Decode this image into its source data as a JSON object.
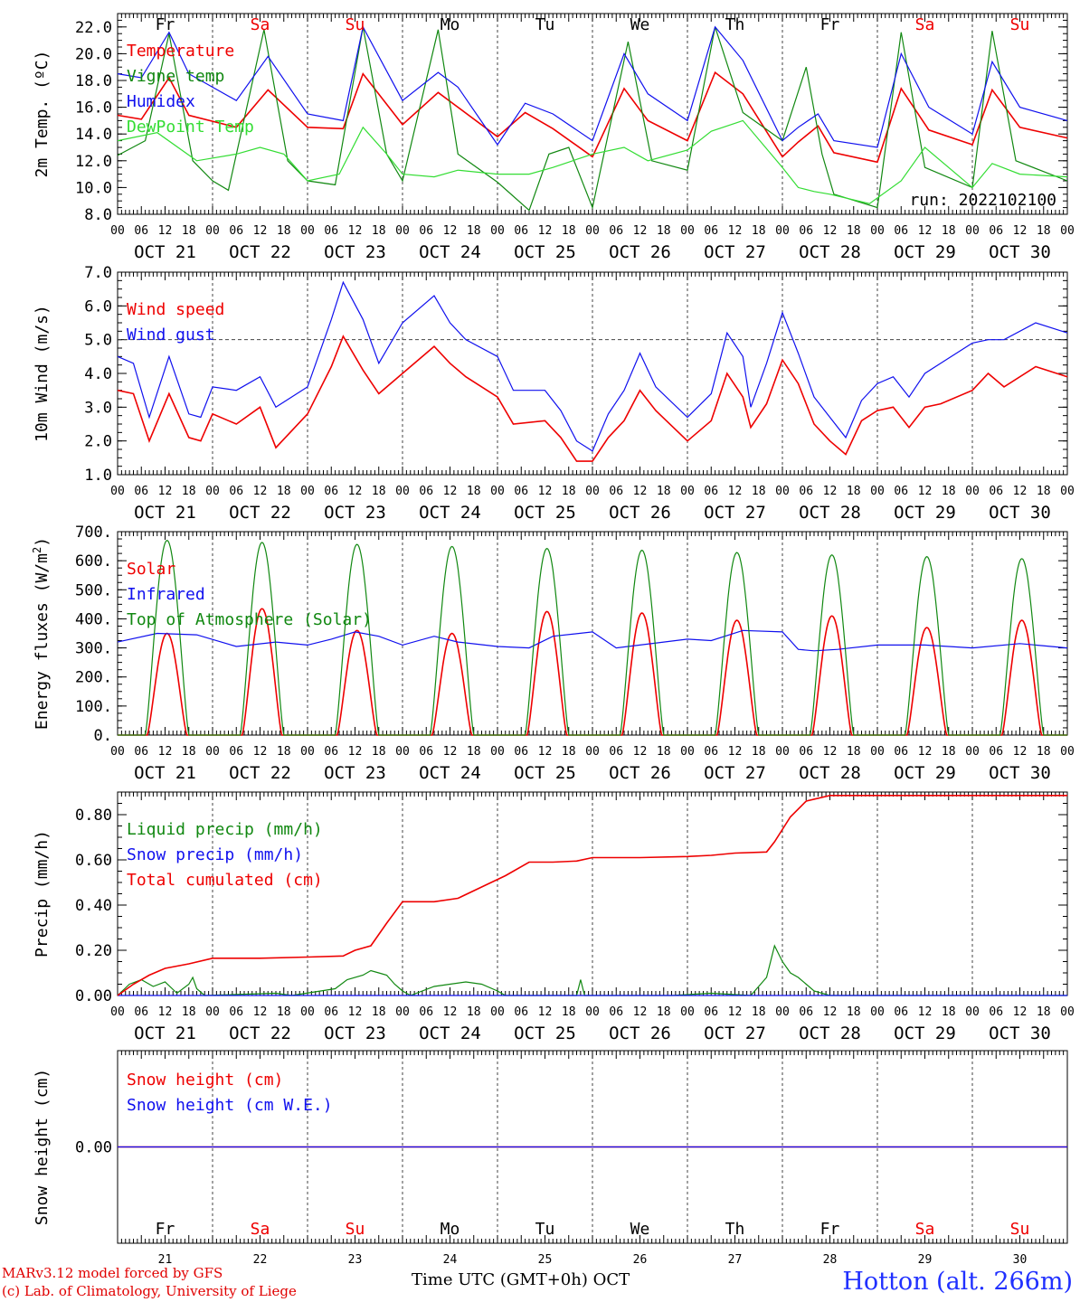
{
  "run_label": "run: 2022102100",
  "footer": {
    "model": "MARv3.12 model forced by GFS",
    "credit": "(c) Lab. of Climatology, University of Liege",
    "xlabel": "Time UTC (GMT+0h) OCT",
    "station": "Hotton (alt. 266m)"
  },
  "days": [
    {
      "abbr": "Fr",
      "weekend": false,
      "date": "OCT 21",
      "num": "21"
    },
    {
      "abbr": "Sa",
      "weekend": true,
      "date": "OCT 22",
      "num": "22"
    },
    {
      "abbr": "Su",
      "weekend": true,
      "date": "OCT 23",
      "num": "23"
    },
    {
      "abbr": "Mo",
      "weekend": false,
      "date": "OCT 24",
      "num": "24"
    },
    {
      "abbr": "Tu",
      "weekend": false,
      "date": "OCT 25",
      "num": "25"
    },
    {
      "abbr": "We",
      "weekend": false,
      "date": "OCT 26",
      "num": "26"
    },
    {
      "abbr": "Th",
      "weekend": false,
      "date": "OCT 27",
      "num": "27"
    },
    {
      "abbr": "Fr",
      "weekend": false,
      "date": "OCT 28",
      "num": "28"
    },
    {
      "abbr": "Sa",
      "weekend": true,
      "date": "OCT 29",
      "num": "29"
    },
    {
      "abbr": "Su",
      "weekend": true,
      "date": "OCT 30",
      "num": "30"
    }
  ],
  "hour_ticks": [
    "00",
    "06",
    "12",
    "18"
  ],
  "final_hour_tick": "00",
  "colors": {
    "red": "#ee0000",
    "green": "#118811",
    "blue": "#1010ee",
    "lightgreen": "#33dd33",
    "purple": "#9922aa",
    "weekend": "#ee0000"
  },
  "chart_data": [
    {
      "type": "line",
      "ylabel": "2m Temp. (ºC)",
      "ylim": [
        8.0,
        23.0
      ],
      "yticks": [
        "8.0",
        "10.0",
        "12.0",
        "14.0",
        "16.0",
        "18.0",
        "20.0",
        "22.0"
      ],
      "legend_location": "left",
      "series": [
        {
          "name": "Temperature",
          "color": "red",
          "x": [
            0,
            6,
            13,
            18,
            30,
            38,
            48,
            57,
            62,
            72,
            81,
            86,
            96,
            103,
            110,
            120,
            128,
            134,
            144,
            151,
            158,
            168,
            172,
            177,
            181,
            192,
            198,
            205,
            216,
            221,
            228,
            240
          ],
          "y": [
            15.4,
            15.1,
            18.2,
            15.4,
            14.5,
            17.3,
            14.5,
            14.4,
            18.5,
            14.7,
            17.1,
            16.0,
            13.8,
            15.6,
            14.4,
            12.3,
            17.4,
            15.0,
            13.5,
            18.6,
            17.0,
            12.3,
            13.4,
            14.6,
            12.6,
            11.9,
            17.4,
            14.3,
            13.2,
            17.3,
            14.5,
            13.7
          ]
        },
        {
          "name": "Vigne temp",
          "color": "green",
          "x": [
            0,
            7,
            13,
            19,
            24,
            28,
            37,
            43,
            48,
            55,
            62,
            68,
            72,
            81,
            86,
            96,
            104,
            109,
            114,
            120,
            129,
            135,
            144,
            151,
            158,
            168,
            174,
            178,
            181,
            192,
            198,
            204,
            216,
            221,
            227,
            240
          ],
          "y": [
            12.4,
            13.5,
            21.5,
            12.0,
            10.5,
            9.8,
            21.8,
            12.0,
            10.5,
            10.2,
            22.0,
            12.5,
            10.5,
            21.8,
            12.5,
            10.4,
            8.3,
            12.5,
            13.0,
            8.5,
            20.9,
            12.0,
            11.3,
            22.0,
            15.6,
            13.5,
            19.0,
            12.5,
            9.5,
            8.5,
            21.6,
            11.5,
            10.0,
            21.7,
            12.0,
            10.5
          ]
        },
        {
          "name": "Humidex",
          "color": "blue",
          "x": [
            0,
            6,
            13,
            18,
            30,
            38,
            48,
            57,
            62,
            72,
            81,
            86,
            96,
            103,
            110,
            120,
            128,
            134,
            144,
            151,
            158,
            168,
            172,
            177,
            181,
            192,
            198,
            205,
            216,
            221,
            228,
            240
          ],
          "y": [
            18.5,
            18.2,
            21.6,
            18.5,
            16.5,
            19.8,
            15.5,
            15.0,
            22.0,
            16.5,
            18.6,
            17.5,
            13.2,
            16.3,
            15.5,
            13.5,
            20.0,
            17.0,
            15.0,
            22.0,
            19.5,
            13.5,
            14.5,
            15.5,
            13.5,
            13.0,
            20.0,
            16.0,
            14.0,
            19.4,
            16.0,
            15.0
          ]
        },
        {
          "name": "DewPoint Temp",
          "color": "lightgreen",
          "x": [
            0,
            10,
            20,
            30,
            36,
            42,
            48,
            56,
            62,
            68,
            72,
            80,
            86,
            96,
            104,
            110,
            120,
            128,
            134,
            144,
            150,
            158,
            168,
            172,
            176,
            180,
            190,
            198,
            204,
            216,
            221,
            228,
            240
          ],
          "y": [
            13.5,
            14.1,
            12.0,
            12.5,
            13.0,
            12.5,
            10.5,
            11.0,
            14.5,
            12.5,
            11.0,
            10.8,
            11.3,
            11.0,
            11.0,
            11.5,
            12.5,
            13.0,
            12.0,
            12.8,
            14.2,
            15.0,
            11.5,
            10.0,
            9.7,
            9.5,
            8.8,
            10.5,
            13.0,
            10.0,
            11.8,
            11.0,
            10.8
          ]
        }
      ]
    },
    {
      "type": "line",
      "ylabel": "10m Wind (m/s)",
      "ylim": [
        1.0,
        7.0
      ],
      "yticks": [
        "1.0",
        "2.0",
        "3.0",
        "4.0",
        "5.0",
        "6.0",
        "7.0"
      ],
      "reference_line": 5.0,
      "legend_location": "left",
      "series": [
        {
          "name": "Wind speed",
          "color": "red",
          "x": [
            0,
            4,
            8,
            13,
            18,
            21,
            24,
            30,
            36,
            40,
            48,
            54,
            57,
            62,
            66,
            72,
            80,
            84,
            88,
            96,
            100,
            108,
            112,
            116,
            120,
            124,
            128,
            132,
            136,
            144,
            150,
            154,
            158,
            160,
            164,
            168,
            172,
            176,
            180,
            184,
            188,
            192,
            196,
            200,
            204,
            208,
            216,
            220,
            224,
            232,
            240
          ],
          "y": [
            3.5,
            3.4,
            2.0,
            3.4,
            2.1,
            2.0,
            2.8,
            2.5,
            3.0,
            1.8,
            2.8,
            4.2,
            5.1,
            4.1,
            3.4,
            4.0,
            4.8,
            4.3,
            3.9,
            3.3,
            2.5,
            2.6,
            2.1,
            1.4,
            1.4,
            2.1,
            2.6,
            3.5,
            2.9,
            2.0,
            2.6,
            4.0,
            3.3,
            2.4,
            3.1,
            4.4,
            3.7,
            2.5,
            2.0,
            1.6,
            2.6,
            2.9,
            3.0,
            2.4,
            3.0,
            3.1,
            3.5,
            4.0,
            3.6,
            4.2,
            3.9
          ]
        },
        {
          "name": "Wind gust",
          "color": "blue",
          "x": [
            0,
            4,
            8,
            13,
            18,
            21,
            24,
            30,
            36,
            40,
            48,
            54,
            57,
            62,
            66,
            72,
            80,
            84,
            88,
            96,
            100,
            108,
            112,
            116,
            120,
            124,
            128,
            132,
            136,
            144,
            150,
            154,
            158,
            160,
            164,
            168,
            172,
            176,
            180,
            184,
            188,
            192,
            196,
            200,
            204,
            208,
            216,
            220,
            224,
            232,
            240
          ],
          "y": [
            4.5,
            4.3,
            2.7,
            4.5,
            2.8,
            2.7,
            3.6,
            3.5,
            3.9,
            3.0,
            3.6,
            5.6,
            6.7,
            5.6,
            4.3,
            5.5,
            6.3,
            5.5,
            5.0,
            4.5,
            3.5,
            3.5,
            2.9,
            2.0,
            1.7,
            2.8,
            3.5,
            4.6,
            3.6,
            2.7,
            3.4,
            5.2,
            4.5,
            3.0,
            4.3,
            5.8,
            4.6,
            3.3,
            2.7,
            2.1,
            3.2,
            3.7,
            3.9,
            3.3,
            4.0,
            4.3,
            4.9,
            5.0,
            5.0,
            5.5,
            5.2
          ]
        }
      ]
    },
    {
      "type": "line",
      "ylabel": "Energy fluxes (W/m2)",
      "ylim": [
        0,
        700
      ],
      "yticks": [
        "0.",
        "100.",
        "200.",
        "300.",
        "400.",
        "500.",
        "600.",
        "700."
      ],
      "legend_location": "left",
      "series": [
        {
          "name": "Solar",
          "color": "red",
          "peaks": [
            350,
            435,
            360,
            350,
            425,
            420,
            395,
            410,
            370,
            395
          ],
          "sunrise_hour": 7.5,
          "sunset_hour": 17.5,
          "peak_hour": 12.5
        },
        {
          "name": "Infrared",
          "color": "blue",
          "x": [
            0,
            10,
            20,
            30,
            40,
            48,
            54,
            60,
            66,
            72,
            80,
            86,
            96,
            104,
            110,
            120,
            126,
            132,
            144,
            150,
            158,
            168,
            172,
            176,
            182,
            192,
            204,
            216,
            228,
            240
          ],
          "y": [
            320,
            350,
            345,
            305,
            320,
            310,
            330,
            355,
            340,
            310,
            340,
            320,
            305,
            300,
            340,
            355,
            300,
            310,
            330,
            325,
            360,
            355,
            295,
            290,
            295,
            310,
            310,
            300,
            315,
            300
          ]
        },
        {
          "name": "Top of Atmosphere (Solar)",
          "color": "green",
          "peaks": [
            670,
            663,
            656,
            649,
            642,
            636,
            628,
            620,
            614,
            607
          ],
          "sunrise_hour": 7.0,
          "sunset_hour": 18.0,
          "peak_hour": 12.5
        }
      ]
    },
    {
      "type": "line",
      "ylabel": "Precip (mm/h)",
      "ylim": [
        0,
        0.9
      ],
      "yticks": [
        "0.00",
        "0.20",
        "0.40",
        "0.60",
        "0.80"
      ],
      "legend_location": "left",
      "series": [
        {
          "name": "Liquid precip (mm/h)",
          "color": "green",
          "x": [
            0,
            3,
            6,
            9,
            12,
            15,
            18,
            19,
            20,
            22,
            40,
            44,
            55,
            58,
            62,
            64,
            66,
            68,
            70,
            72,
            74,
            80,
            84,
            88,
            92,
            96,
            98,
            116,
            117,
            118,
            140,
            150,
            160,
            164,
            166,
            168,
            170,
            172,
            174,
            176,
            180,
            240
          ],
          "y": [
            0.0,
            0.05,
            0.07,
            0.04,
            0.06,
            0.01,
            0.05,
            0.08,
            0.03,
            0.0,
            0.01,
            0.0,
            0.03,
            0.07,
            0.09,
            0.11,
            0.1,
            0.09,
            0.05,
            0.02,
            0.0,
            0.04,
            0.05,
            0.06,
            0.05,
            0.02,
            0.0,
            0.0,
            0.07,
            0.0,
            0.0,
            0.01,
            0.0,
            0.08,
            0.22,
            0.15,
            0.1,
            0.08,
            0.05,
            0.02,
            0.0,
            0.0
          ]
        },
        {
          "name": "Snow precip (mm/h)",
          "color": "blue",
          "x": [
            0,
            240
          ],
          "y": [
            0.0,
            0.0
          ]
        },
        {
          "name": "Total cumulated (cm)",
          "color": "red",
          "x": [
            0,
            4,
            8,
            12,
            18,
            24,
            36,
            48,
            57,
            60,
            64,
            68,
            72,
            80,
            86,
            92,
            98,
            104,
            110,
            116,
            120,
            132,
            144,
            150,
            156,
            164,
            166,
            170,
            174,
            180,
            240
          ],
          "y": [
            0.0,
            0.05,
            0.09,
            0.12,
            0.14,
            0.165,
            0.165,
            0.17,
            0.175,
            0.2,
            0.22,
            0.32,
            0.415,
            0.415,
            0.43,
            0.48,
            0.53,
            0.59,
            0.59,
            0.595,
            0.61,
            0.61,
            0.615,
            0.62,
            0.63,
            0.635,
            0.68,
            0.79,
            0.86,
            0.885,
            0.885
          ]
        }
      ]
    },
    {
      "type": "line",
      "ylabel": "Snow height (cm)",
      "ylim": [
        -1,
        1
      ],
      "yticks": [
        "0.00"
      ],
      "legend_location": "left",
      "series": [
        {
          "name": "Snow height (cm)",
          "color": "red",
          "x": [
            0,
            240
          ],
          "y": [
            0.0,
            0.0
          ]
        },
        {
          "name": "Snow height (cm W.E.)",
          "color": "blue",
          "x": [
            0,
            240
          ],
          "y": [
            0.0,
            0.0
          ]
        }
      ]
    }
  ]
}
